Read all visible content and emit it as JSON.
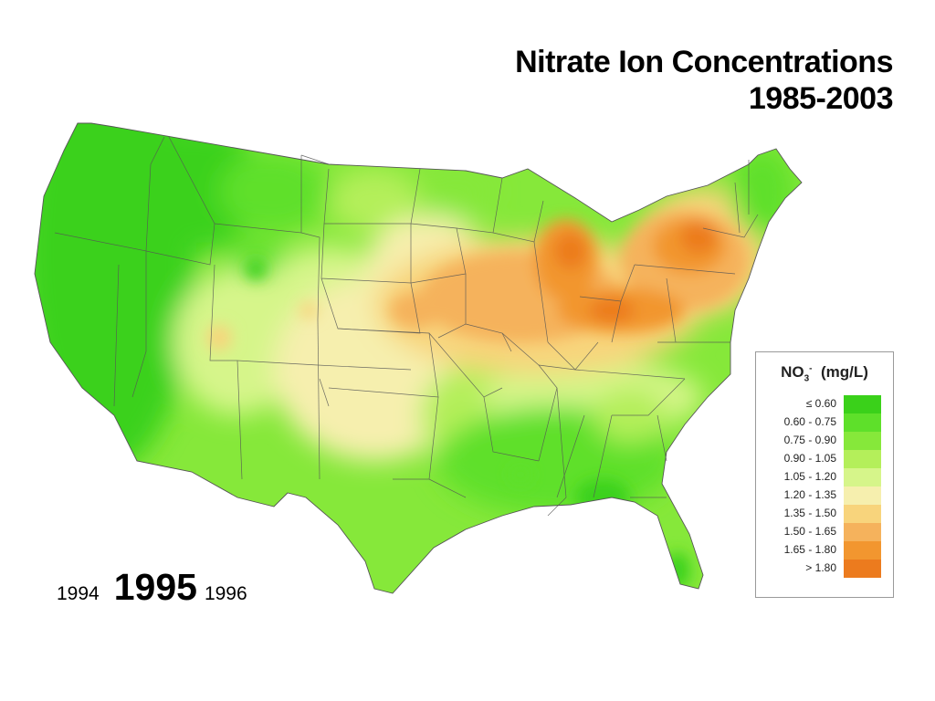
{
  "title": {
    "line1": "Nitrate Ion Concentrations",
    "line2": "1985-2003"
  },
  "timeline": {
    "prev": "1994",
    "current": "1995",
    "next": "1996"
  },
  "legend": {
    "title_prefix": "NO",
    "title_sub": "3",
    "title_sup": "-",
    "title_units": "(mg/L)",
    "classes": [
      {
        "label": "≤ 0.60",
        "color": "#3ad11a"
      },
      {
        "label": "0.60 - 0.75",
        "color": "#5ee02a"
      },
      {
        "label": "0.75 - 0.90",
        "color": "#86e83a"
      },
      {
        "label": "0.90 - 1.05",
        "color": "#b4ef5a"
      },
      {
        "label": "1.05 - 1.20",
        "color": "#d6f58a"
      },
      {
        "label": "1.20 - 1.35",
        "color": "#f6efae"
      },
      {
        "label": "1.35 - 1.50",
        "color": "#f8d47c"
      },
      {
        "label": "1.50 - 1.65",
        "color": "#f5b25c"
      },
      {
        "label": "1.65 - 1.80",
        "color": "#f2962f"
      },
      {
        "label": "> 1.80",
        "color": "#ec7b1e"
      }
    ]
  },
  "map": {
    "subject": "contiguous United States",
    "shading": "interpolated nitrate concentration"
  }
}
